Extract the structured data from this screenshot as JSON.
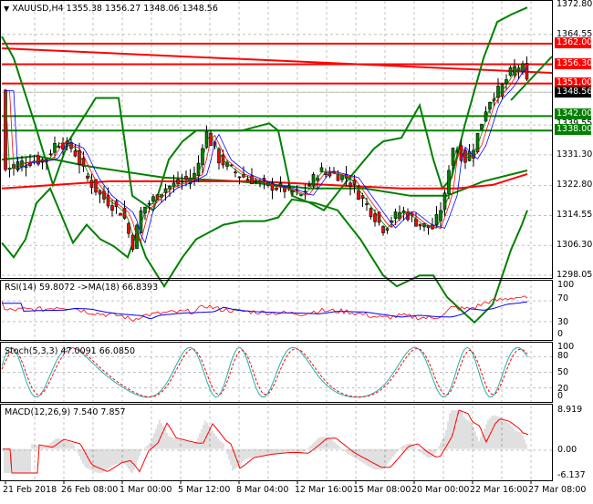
{
  "header": {
    "symbol": "XAUUSD,H4",
    "ohlc": "1355.38 1356.27 1348.06 1348.56",
    "title": "XAUUSD,H4  1355.38 1356.27 1348.06 1348.56"
  },
  "price_axis": {
    "ticks": [
      "1372.80",
      "1364.55",
      "1356.30",
      "1348.56",
      "1339.55",
      "1331.30",
      "1322.80",
      "1314.55",
      "1306.30",
      "1298.05"
    ],
    "max": 1372.8,
    "min": 1298.05
  },
  "levels": [
    {
      "label": "1362.00",
      "value": 1362.0,
      "color": "#ff0000"
    },
    {
      "label": "1356.30",
      "value": 1356.3,
      "color": "#ff0000"
    },
    {
      "label": "1351.00",
      "value": 1351.0,
      "color": "#ff0000"
    },
    {
      "label": "1348.56",
      "value": 1348.56,
      "color": "#000000"
    },
    {
      "label": "1342.00",
      "value": 1342.0,
      "color": "#008000"
    },
    {
      "label": "1338.00",
      "value": 1338.0,
      "color": "#008000"
    }
  ],
  "rsi": {
    "title": "RSI(14) 59.8072  ->MA(18) 66.8393",
    "ticks": [
      "100",
      "70",
      "30",
      "0"
    ]
  },
  "stoch": {
    "title": "Stoch(5,3,3) 47.0091 66.0850",
    "ticks": [
      "100",
      "80",
      "50",
      "20",
      "0"
    ]
  },
  "macd": {
    "title": "MACD(12,26,9) 7.540 7.857",
    "ticks": [
      "8.919",
      "0.00",
      "-6.137"
    ]
  },
  "time_axis": {
    "labels": [
      "21 Feb 2018",
      "26 Feb 08:00",
      "1 Mar 00:00",
      "5 Mar 12:00",
      "8 Mar 04:00",
      "12 Mar 16:00",
      "15 Mar 08:00",
      "20 Mar 00:00",
      "22 Mar 16:00",
      "27 Mar 08:00"
    ]
  },
  "colors": {
    "bull": "#008000",
    "bear": "#ff0000",
    "bands": "#008000",
    "resistance": "#ff0000",
    "support": "#008000",
    "rsi": "#ff0000",
    "rsi_ma": "#0000ff",
    "stoch_main": "#20b2aa",
    "stoch_signal": "#ff0000",
    "macd_hist": "#c0c0c0",
    "macd_signal": "#ff0000"
  },
  "chart_data": {
    "type": "candlestick",
    "title": "XAUUSD,H4",
    "ohlc_last": {
      "open": 1355.38,
      "high": 1356.27,
      "low": 1348.06,
      "close": 1348.56
    },
    "ylim": [
      1298.05,
      1372.8
    ],
    "x_tick_labels": [
      "21 Feb 2018",
      "26 Feb 08:00",
      "1 Mar 00:00",
      "5 Mar 12:00",
      "8 Mar 04:00",
      "12 Mar 16:00",
      "15 Mar 08:00",
      "20 Mar 00:00",
      "22 Mar 16:00",
      "27 Mar 08:00"
    ],
    "horizontal_levels": {
      "resistance": [
        1362.0,
        1356.3,
        1351.0
      ],
      "support": [
        1342.0,
        1338.0
      ],
      "current_price": 1348.56
    },
    "close_path_approx": [
      {
        "x": "21 Feb 2018",
        "close": 1330
      },
      {
        "x": "26 Feb 08:00",
        "close": 1332
      },
      {
        "x": "1 Mar 00:00",
        "close": 1315
      },
      {
        "x": "5 Mar 12:00",
        "close": 1323
      },
      {
        "x": "8 Mar 04:00",
        "close": 1322
      },
      {
        "x": "12 Mar 16:00",
        "close": 1323
      },
      {
        "x": "15 Mar 08:00",
        "close": 1319
      },
      {
        "x": "20 Mar 00:00",
        "close": 1313
      },
      {
        "x": "22 Mar 16:00",
        "close": 1330
      },
      {
        "x": "27 Mar 08:00",
        "close": 1348.56
      }
    ],
    "indicators": [
      {
        "name": "RSI(14)",
        "value": 59.8072,
        "ma_name": "MA(18)",
        "ma_value": 66.8393,
        "ylim": [
          0,
          100
        ],
        "levels": [
          30,
          70
        ]
      },
      {
        "name": "Stoch(5,3,3)",
        "main": 47.0091,
        "signal": 66.085,
        "ylim": [
          0,
          100
        ],
        "levels": [
          20,
          50,
          80
        ]
      },
      {
        "name": "MACD(12,26,9)",
        "main": 7.54,
        "signal": 7.857,
        "ylim": [
          -6.137,
          8.919
        ]
      }
    ],
    "grid": true,
    "legend": "none"
  }
}
